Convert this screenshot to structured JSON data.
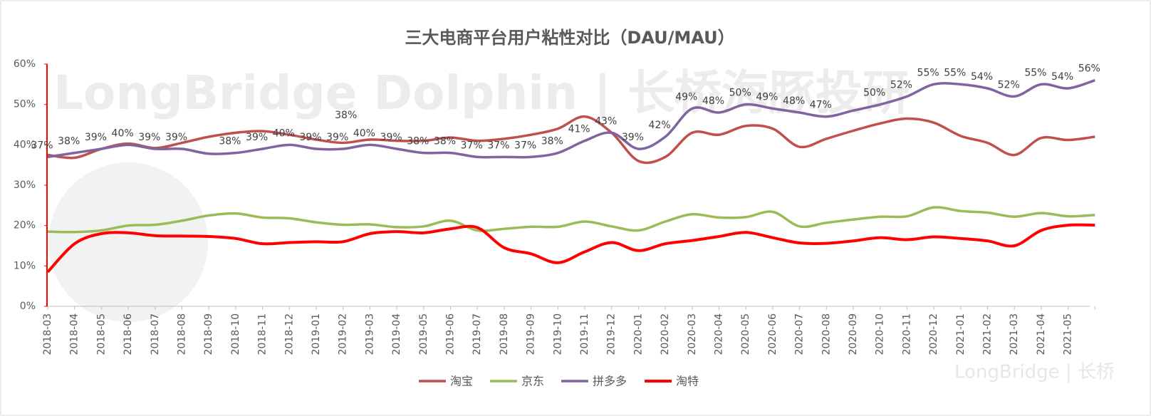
{
  "chart_data": {
    "type": "line",
    "title": "三大电商平台用户粘性对比（DAU/MAU）",
    "watermark": "LongBridge Dolphin | 长桥海豚投研",
    "footer_logo": "LongBridge | 长桥",
    "categories": [
      "2018-03",
      "2018-04",
      "2018-05",
      "2018-06",
      "2018-07",
      "2018-08",
      "2018-09",
      "2018-10",
      "2018-11",
      "2018-12",
      "2019-01",
      "2019-02",
      "2019-03",
      "2019-04",
      "2019-05",
      "2019-06",
      "2019-07",
      "2019-08",
      "2019-09",
      "2019-10",
      "2019-11",
      "2019-12",
      "2020-01",
      "2020-02",
      "2020-03",
      "2020-04",
      "2020-05",
      "2020-06",
      "2020-07",
      "2020-08",
      "2020-09",
      "2020-10",
      "2020-11",
      "2020-12",
      "2021-01",
      "2021-02",
      "2021-03",
      "2021-04",
      "2021-05",
      null
    ],
    "series": [
      {
        "name": "淘宝",
        "color": "#c0504d",
        "values": [
          37.5,
          36.8,
          39,
          40.3,
          39.2,
          40.5,
          42,
          43,
          43.4,
          42.5,
          41.3,
          40.5,
          41.3,
          41,
          41,
          41.8,
          41,
          41.5,
          42.5,
          44,
          47,
          43,
          36,
          37,
          43,
          42.5,
          44.7,
          44,
          39.5,
          41.5,
          43.5,
          45.3,
          46.5,
          45.5,
          42.2,
          40.5,
          37.5,
          41.7,
          41.2,
          42
        ]
      },
      {
        "name": "京东",
        "color": "#9bbb59",
        "values": [
          18.5,
          18.4,
          18.8,
          20,
          20.2,
          21.2,
          22.5,
          23,
          22,
          21.8,
          20.8,
          20.2,
          20.3,
          19.6,
          19.8,
          21.2,
          18.8,
          19.2,
          19.7,
          19.7,
          21,
          19.8,
          18.8,
          21,
          22.8,
          22,
          22.1,
          23.4,
          19.8,
          20.7,
          21.5,
          22.2,
          22.3,
          24.5,
          23.6,
          23.2,
          22.2,
          23.1,
          22.3,
          22.6
        ]
      },
      {
        "name": "拼多多",
        "color": "#8064a2",
        "values": [
          37,
          38,
          39,
          40,
          39,
          39,
          37.8,
          38,
          39,
          40,
          39,
          39,
          40,
          39,
          38,
          38,
          37,
          37,
          37,
          38,
          41,
          43,
          39,
          42,
          49,
          48,
          50,
          49,
          48,
          47,
          48.5,
          50,
          52,
          55,
          55,
          54,
          52,
          55,
          54,
          56
        ],
        "value_labels": [
          "37%",
          "38%",
          "39%",
          "40%",
          "39%",
          "39%",
          null,
          "38%",
          "39%",
          "40%",
          "39%",
          "39%",
          "40%",
          "39%",
          "38%",
          "38%",
          "37%",
          "37%",
          "37%",
          "38%",
          "41%",
          "43%",
          "39%",
          "42%",
          "49%",
          "48%",
          "50%",
          "49%",
          "48%",
          "47%",
          null,
          "50%",
          "52%",
          "55%",
          "55%",
          "54%",
          "52%",
          "55%",
          "54%",
          "56%"
        ]
      },
      {
        "name": "淘特",
        "color": "#ff0000",
        "values": [
          8.5,
          15.5,
          18,
          18.2,
          17.5,
          17.4,
          17.3,
          16.8,
          15.5,
          15.8,
          16,
          16,
          18,
          18.5,
          18.2,
          19.2,
          19.5,
          14.5,
          13,
          10.8,
          13.5,
          15.8,
          13.8,
          15.5,
          16.3,
          17.3,
          18.3,
          17,
          15.7,
          15.6,
          16.2,
          17,
          16.5,
          17.2,
          16.8,
          16.2,
          15,
          18.8,
          20.1,
          20.1
        ]
      }
    ],
    "annotations": [
      {
        "text": "38%",
        "category": "2019-02"
      }
    ],
    "ylim": [
      0,
      60
    ],
    "yticks": [
      {
        "value": 0,
        "label": "0%"
      },
      {
        "value": 10,
        "label": "10%"
      },
      {
        "value": 20,
        "label": "20%"
      },
      {
        "value": 30,
        "label": "30%"
      },
      {
        "value": 40,
        "label": "40%"
      },
      {
        "value": 50,
        "label": "50%"
      },
      {
        "value": 60,
        "label": "60%"
      }
    ],
    "legend": "bottom",
    "grid": false
  }
}
